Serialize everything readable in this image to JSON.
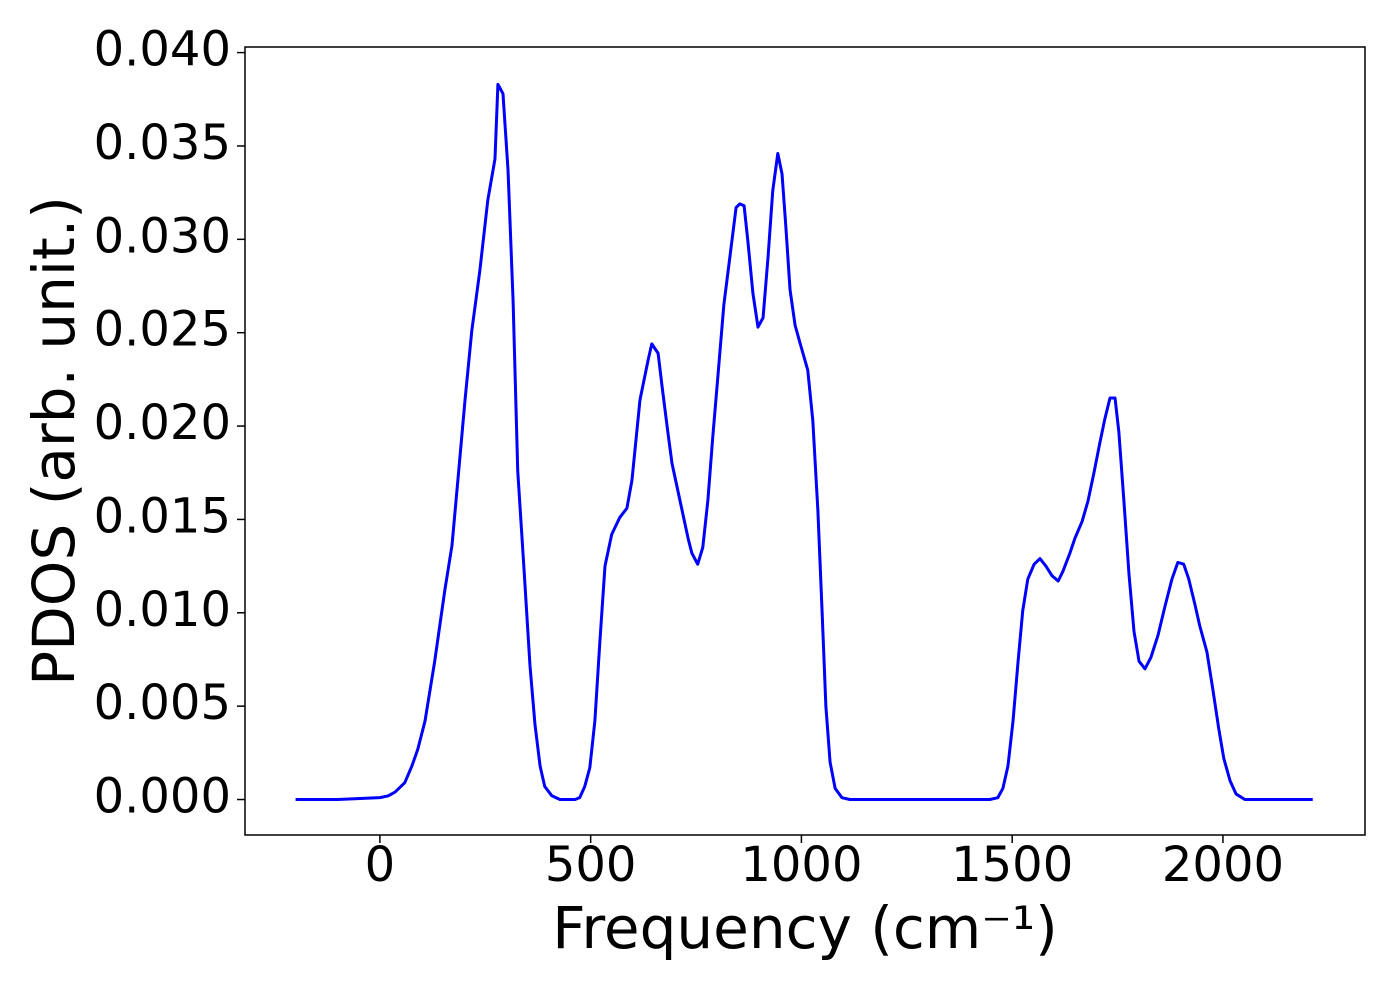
{
  "chart_data": {
    "type": "line",
    "xlabel": "Frequency (cm⁻¹)",
    "ylabel": "PDOS (arb. unit.)",
    "color": "#0000ff",
    "xlim": [
      -320,
      2337
    ],
    "ylim": [
      -0.0019,
      0.0403
    ],
    "xticks": [
      0,
      500,
      1000,
      1500,
      2000
    ],
    "yticks": [
      {
        "value": 0,
        "label": "0.000"
      },
      {
        "value": 0.005,
        "label": "0.005"
      },
      {
        "value": 0.01,
        "label": "0.010"
      },
      {
        "value": 0.015,
        "label": "0.015"
      },
      {
        "value": 0.02,
        "label": "0.020"
      },
      {
        "value": 0.025,
        "label": "0.025"
      },
      {
        "value": 0.03,
        "label": "0.030"
      },
      {
        "value": 0.035,
        "label": "0.035"
      },
      {
        "value": 0.04,
        "label": "0.040"
      }
    ],
    "x": [
      -200,
      -100,
      0,
      20,
      36,
      59,
      76,
      90,
      107,
      130,
      154,
      171,
      185,
      202,
      218,
      237,
      256,
      273,
      280,
      292,
      304,
      316,
      327,
      342,
      356,
      368,
      380,
      391,
      408,
      427,
      463,
      474,
      486,
      498,
      510,
      522,
      534,
      550,
      569,
      586,
      598,
      617,
      636,
      645,
      660,
      669,
      683,
      693,
      712,
      731,
      740,
      754,
      766,
      778,
      790,
      802,
      816,
      830,
      845,
      854,
      864,
      873,
      885,
      897,
      909,
      921,
      932,
      944,
      954,
      963,
      973,
      985,
      996,
      1015,
      1027,
      1039,
      1049,
      1058,
      1068,
      1080,
      1096,
      1115,
      1447,
      1466,
      1478,
      1490,
      1502,
      1514,
      1525,
      1537,
      1552,
      1566,
      1580,
      1594,
      1609,
      1620,
      1637,
      1649,
      1666,
      1680,
      1694,
      1708,
      1720,
      1732,
      1744,
      1753,
      1765,
      1777,
      1789,
      1801,
      1815,
      1829,
      1846,
      1862,
      1879,
      1893,
      1907,
      1919,
      1934,
      1945,
      1962,
      1976,
      1990,
      2002,
      2017,
      2031,
      2052,
      2213
    ],
    "values": [
      0,
      0,
      0.0001,
      0.0002,
      0.0004,
      0.0009,
      0.0018,
      0.0027,
      0.0042,
      0.0074,
      0.0112,
      0.0136,
      0.0171,
      0.0214,
      0.0251,
      0.0283,
      0.0321,
      0.0343,
      0.0383,
      0.0378,
      0.0337,
      0.0267,
      0.0176,
      0.0123,
      0.0072,
      0.004,
      0.0018,
      0.0007,
      0.0002,
      0,
      0,
      0.0001,
      0.0007,
      0.0017,
      0.0042,
      0.0085,
      0.0125,
      0.0142,
      0.0151,
      0.0156,
      0.0171,
      0.0214,
      0.0235,
      0.0244,
      0.0239,
      0.0222,
      0.0197,
      0.018,
      0.016,
      0.014,
      0.0132,
      0.0126,
      0.0135,
      0.016,
      0.0195,
      0.0227,
      0.0265,
      0.029,
      0.0317,
      0.0319,
      0.0318,
      0.0299,
      0.0271,
      0.0253,
      0.0258,
      0.0291,
      0.0326,
      0.0346,
      0.0335,
      0.0307,
      0.0273,
      0.0254,
      0.0245,
      0.023,
      0.0203,
      0.0155,
      0.0101,
      0.005,
      0.002,
      0.0006,
      0.0001,
      0,
      0,
      0.0001,
      0.0006,
      0.0018,
      0.0042,
      0.0074,
      0.0101,
      0.0118,
      0.0126,
      0.0129,
      0.0125,
      0.012,
      0.0117,
      0.0122,
      0.0132,
      0.014,
      0.0149,
      0.016,
      0.0175,
      0.0191,
      0.0204,
      0.0215,
      0.0215,
      0.0197,
      0.016,
      0.0121,
      0.009,
      0.0074,
      0.007,
      0.0076,
      0.0088,
      0.0103,
      0.0118,
      0.0127,
      0.0126,
      0.0118,
      0.0104,
      0.0093,
      0.0079,
      0.0059,
      0.0038,
      0.0022,
      0.001,
      0.0003,
      0,
      0
    ]
  }
}
